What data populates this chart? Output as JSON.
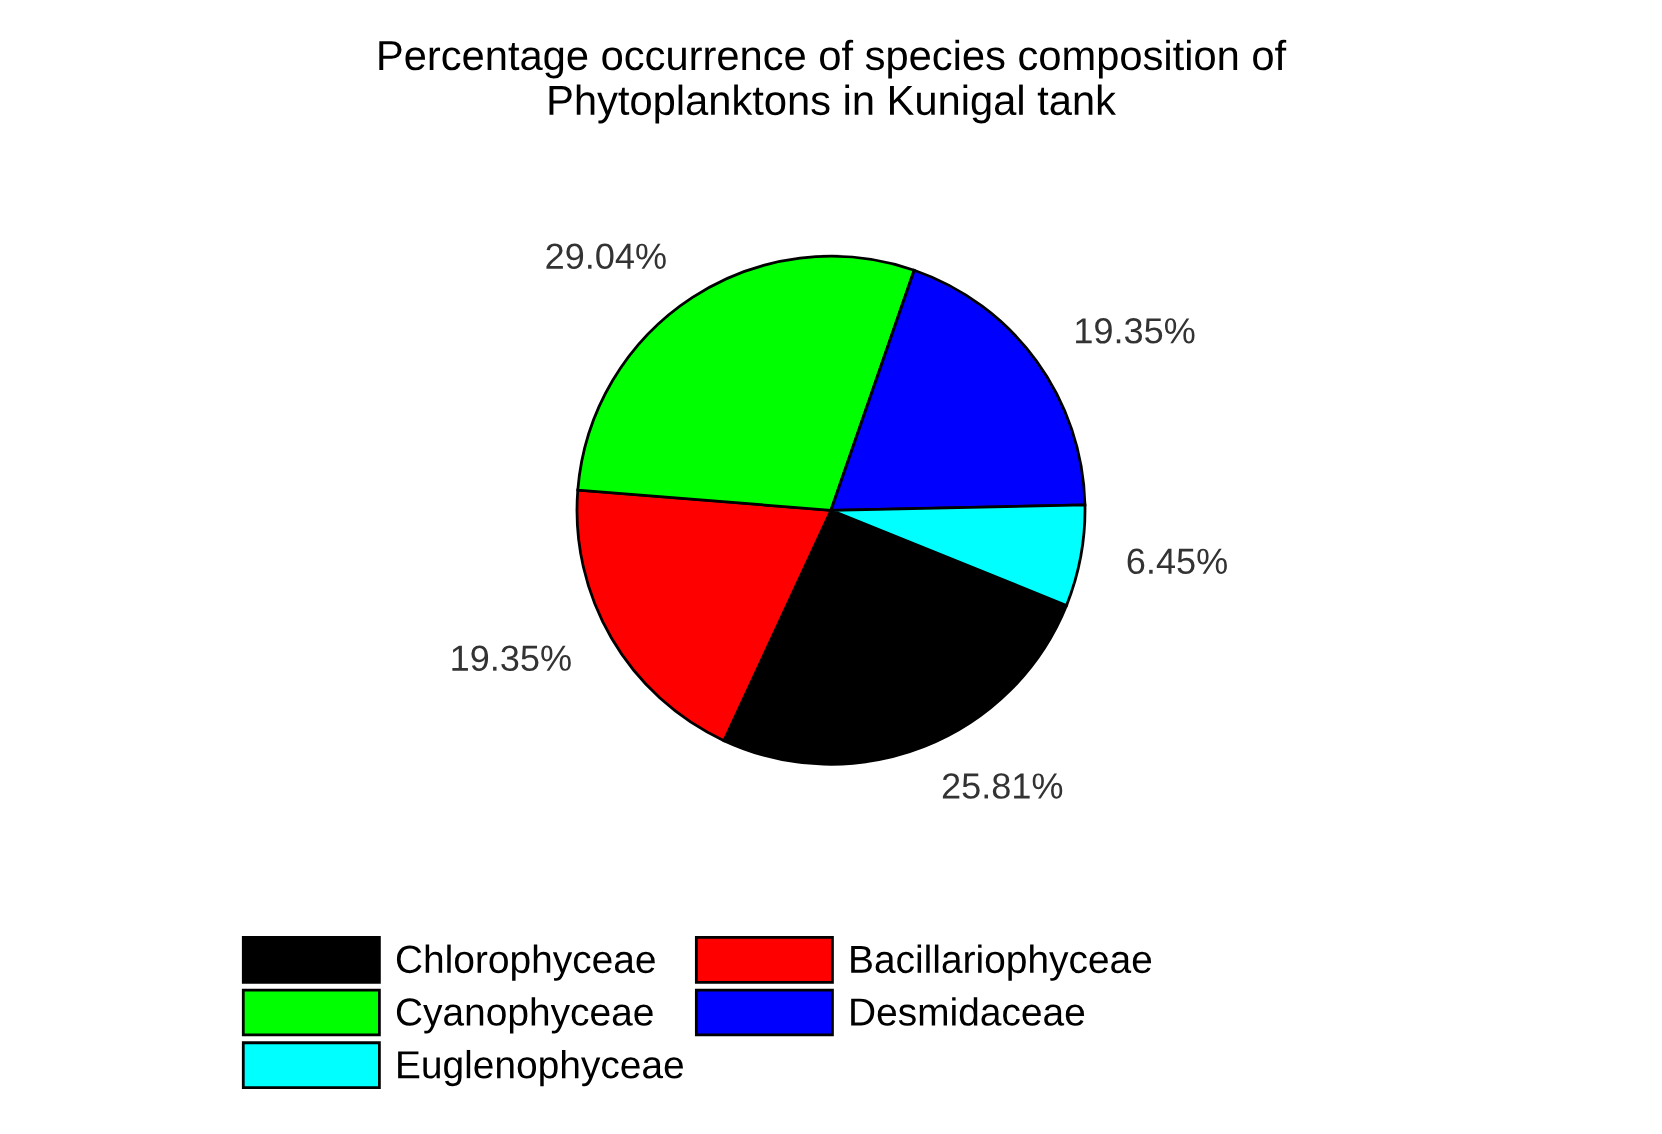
{
  "chart_data": {
    "type": "pie",
    "title": "Percentage occurrence of species composition of\nPhytoplanktons in Kunigal tank",
    "categories": [
      "Chlorophyceae",
      "Bacillariophyceae",
      "Cyanophyceae",
      "Desmidaceae",
      "Euglenophyceae"
    ],
    "values": [
      25.81,
      19.35,
      29.04,
      19.35,
      6.45
    ],
    "value_labels": [
      "25.81%",
      "19.35%",
      "29.04%",
      "19.35%",
      "6.45%"
    ],
    "colors": [
      "#000000",
      "#ff0000",
      "#00ff00",
      "#0000ff",
      "#00ffff"
    ],
    "legend": "bottom"
  }
}
